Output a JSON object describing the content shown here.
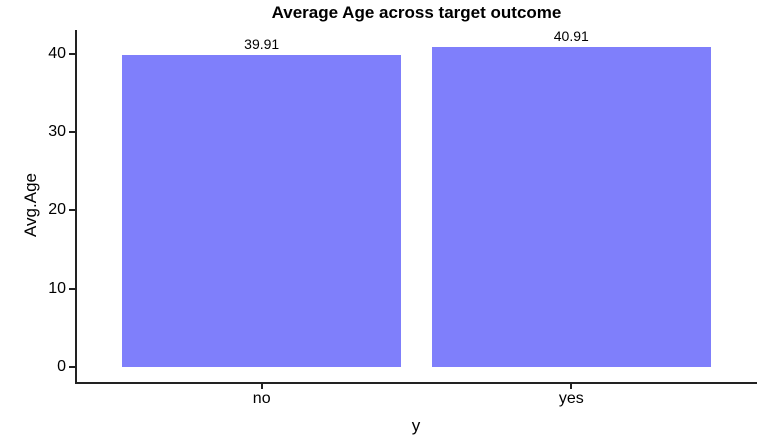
{
  "chart_data": {
    "type": "bar",
    "title": "Average Age across target outcome",
    "xlabel": "y",
    "ylabel": "Avg.Age",
    "categories": [
      "no",
      "yes"
    ],
    "values": [
      39.91,
      40.91
    ],
    "bar_labels": [
      "39.91",
      "40.91"
    ],
    "yticks": [
      0,
      10,
      20,
      30,
      40
    ],
    "ylim": [
      0,
      43
    ],
    "grid": false,
    "legend_position": "none",
    "bar_color": "#7f7ffb",
    "axis_color": "#222222",
    "text_color": "#000000",
    "background_color": "#ffffff"
  }
}
